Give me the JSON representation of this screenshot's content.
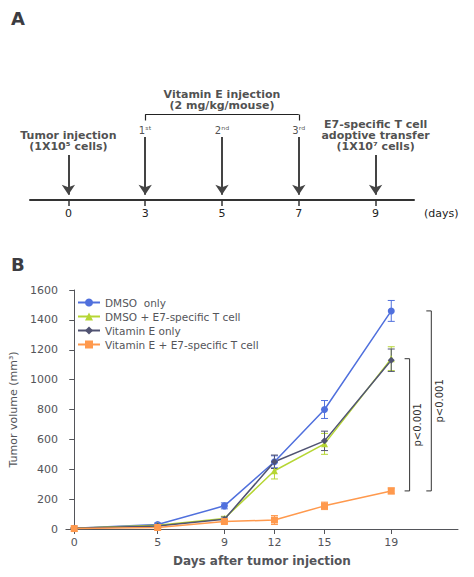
{
  "chart_data": [
    {
      "type": "timeline",
      "title": "A",
      "categories": [
        0,
        3,
        5,
        7,
        9
      ],
      "xlabel": "(days)",
      "annotations": [
        {
          "text": "Tumor injection\n(1X10⁵ cells)",
          "day": 0
        },
        {
          "text": "Vitamin E injection\n(2 mg/kg/mouse)",
          "from_day": 3,
          "to_day": 7
        },
        {
          "text": "1ˢᵗ",
          "day": 3
        },
        {
          "text": "2ⁿᵈ",
          "day": 5
        },
        {
          "text": "3ʳᵈ",
          "day": 7
        },
        {
          "text": "E7-specific T cell\nadoptive transfer\n(1X10⁷ cells)",
          "day": 9
        }
      ]
    },
    {
      "type": "line",
      "title": "B",
      "x": [
        0,
        5,
        9,
        12,
        15,
        19
      ],
      "xlabel": "Days after tumor injection",
      "ylabel": "Tumor volume (mm³)",
      "xlim": [
        -0.5,
        23.0
      ],
      "xticks": [
        0,
        5,
        9,
        12,
        15,
        19
      ],
      "ylim": [
        0,
        1600
      ],
      "yticks": [
        0,
        200,
        400,
        600,
        800,
        1000,
        1200,
        1400,
        1600
      ],
      "grid": false,
      "legend": "upper left",
      "series": [
        {
          "name": "DMSO  only",
          "marker": "circle",
          "values": [
            5,
            30,
            155,
            450,
            800,
            1460
          ],
          "errors": [
            3,
            10,
            20,
            40,
            60,
            70
          ]
        },
        {
          "name": "DMSO + E7-specific T cell",
          "marker": "triangle",
          "values": [
            5,
            25,
            70,
            390,
            570,
            1140
          ],
          "errors": [
            3,
            8,
            15,
            55,
            70,
            80
          ]
        },
        {
          "name": "Vitamin E only",
          "marker": "diamond",
          "values": [
            5,
            20,
            65,
            450,
            590,
            1130
          ],
          "errors": [
            3,
            8,
            15,
            45,
            65,
            75
          ]
        },
        {
          "name": "Vitamin E + E7-specific T cell",
          "marker": "square",
          "values": [
            3,
            10,
            50,
            60,
            155,
            255
          ],
          "errors": [
            2,
            5,
            10,
            30,
            25,
            20
          ]
        }
      ],
      "annotations": [
        {
          "text": "p<0.001",
          "between": [
            "DMSO + E7-specific T cell",
            "Vitamin E + E7-specific T cell"
          ]
        },
        {
          "text": "p<0.001",
          "between": [
            "DMSO  only",
            "Vitamin E + E7-specific T cell"
          ]
        }
      ]
    }
  ]
}
